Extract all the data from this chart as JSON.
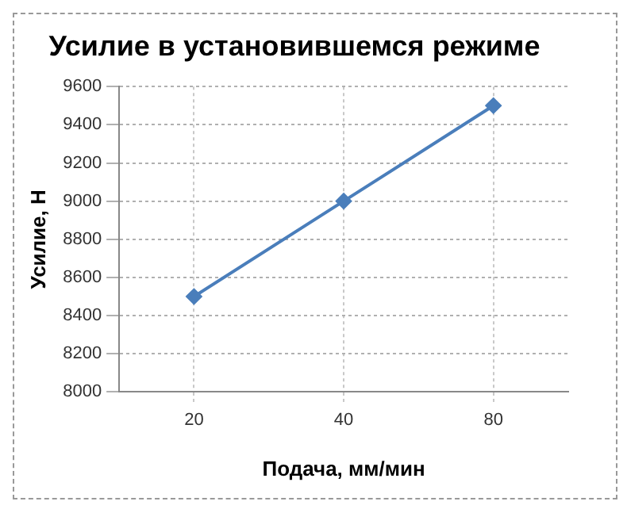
{
  "chart_data": {
    "type": "line",
    "title": "Усилие в установившемся режиме",
    "xlabel": "Подача, мм/мин",
    "ylabel": "Усилие, Н",
    "categories": [
      "20",
      "40",
      "80"
    ],
    "series": [
      {
        "color": "#4a7ebb",
        "values": [
          8500,
          9000,
          9500
        ]
      }
    ],
    "ylim": [
      8000,
      9600
    ],
    "yticks": [
      8000,
      8200,
      8400,
      8600,
      8800,
      9000,
      9200,
      9400,
      9600
    ],
    "grid": true,
    "marker": "diamond",
    "line_style": "solid",
    "legend": false
  }
}
